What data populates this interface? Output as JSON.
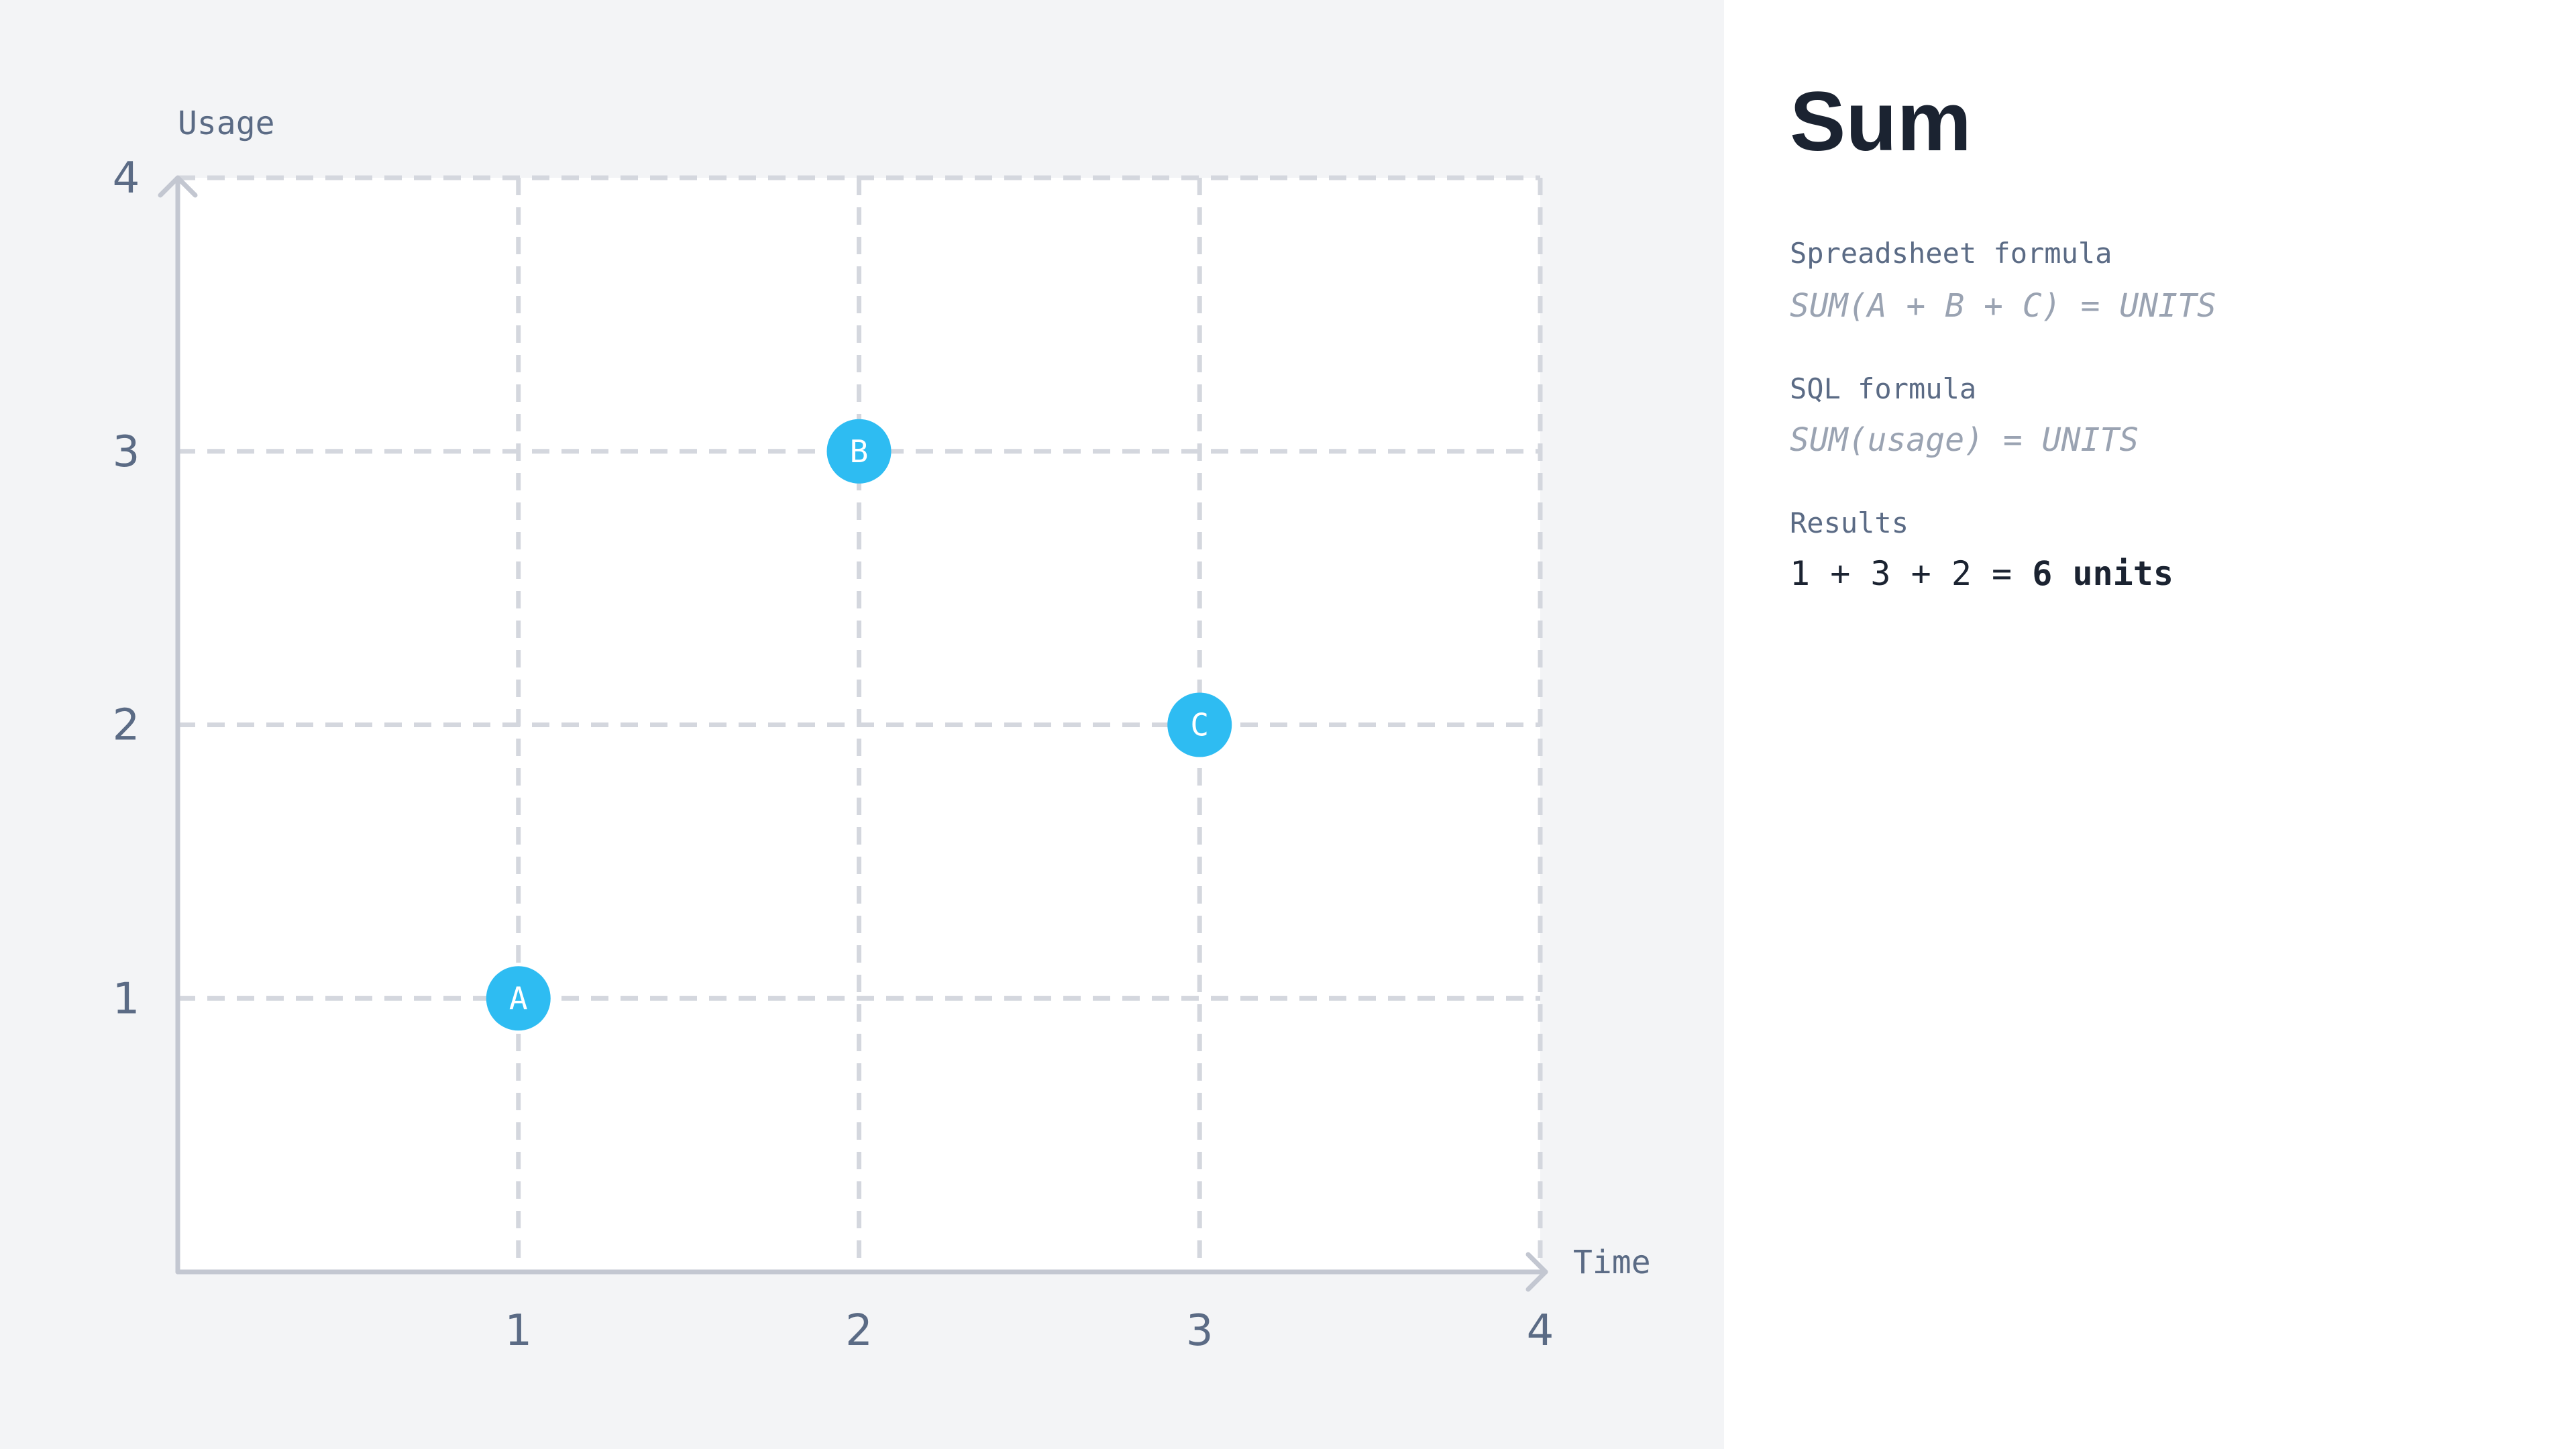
{
  "chart_data": {
    "type": "scatter",
    "xlabel": "Time",
    "ylabel": "Usage",
    "xlim": [
      0,
      4
    ],
    "ylim": [
      0,
      4
    ],
    "xticks": [
      "1",
      "2",
      "3",
      "4"
    ],
    "yticks": [
      "1",
      "2",
      "3",
      "4"
    ],
    "grid": true,
    "points": [
      {
        "label": "A",
        "x": 1,
        "y": 1
      },
      {
        "label": "B",
        "x": 2,
        "y": 3
      },
      {
        "label": "C",
        "x": 3,
        "y": 2
      }
    ],
    "colors": {
      "point": "#2ebcf2",
      "grid": "#d4d7de",
      "axis": "#c3c7d1",
      "tick_text": "#5b6b85",
      "background": "#ffffff"
    }
  },
  "info": {
    "title": "Sum",
    "spreadsheet_label": "Spreadsheet formula",
    "spreadsheet_formula": "SUM(A + B + C) = UNITS",
    "sql_label": "SQL formula",
    "sql_formula": "SUM(usage) = UNITS",
    "results_label": "Results",
    "results_expression": "1 + 3 + 2 = ",
    "results_total": "6 units"
  }
}
